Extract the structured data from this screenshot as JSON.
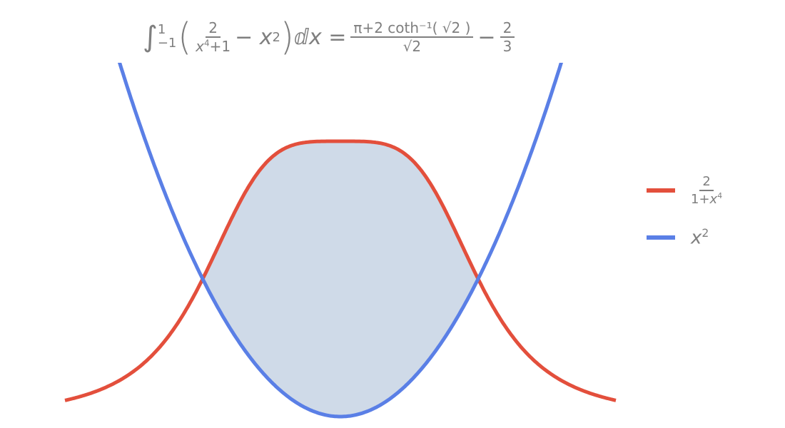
{
  "chart_data": {
    "type": "line",
    "title": {
      "integral_lower": "−1",
      "integral_upper": "1",
      "integrand_num": "2",
      "integrand_den_base": "x",
      "integrand_den_exp": "4",
      "integrand_den_tail": "+1",
      "minus": "−",
      "term_base": "x",
      "term_exp": "2",
      "differential": "ⅆx",
      "equals": "=",
      "rhs_num": "π+2 coth⁻¹( √2 )",
      "rhs_den": "√2",
      "rhs_minus": "−",
      "rhs_frac_num": "2",
      "rhs_frac_den": "3"
    },
    "xlim": [
      -2,
      2
    ],
    "ylim": [
      0,
      2.57
    ],
    "axes": false,
    "grid": false,
    "fill_between": {
      "x_range": [
        -1,
        1
      ],
      "color": "#CFDAE8"
    },
    "series": [
      {
        "name": "2/(1+x^4)",
        "expr": "2/(1+x**4)",
        "color": "#E34F3C",
        "legend": {
          "num": "2",
          "den_head": "1+",
          "den_base": "x",
          "den_exp": "4"
        }
      },
      {
        "name": "x^2",
        "expr": "x**2",
        "color": "#5A7FE6",
        "legend": {
          "base": "x",
          "exp": "2"
        }
      }
    ],
    "legend_position": "right"
  }
}
